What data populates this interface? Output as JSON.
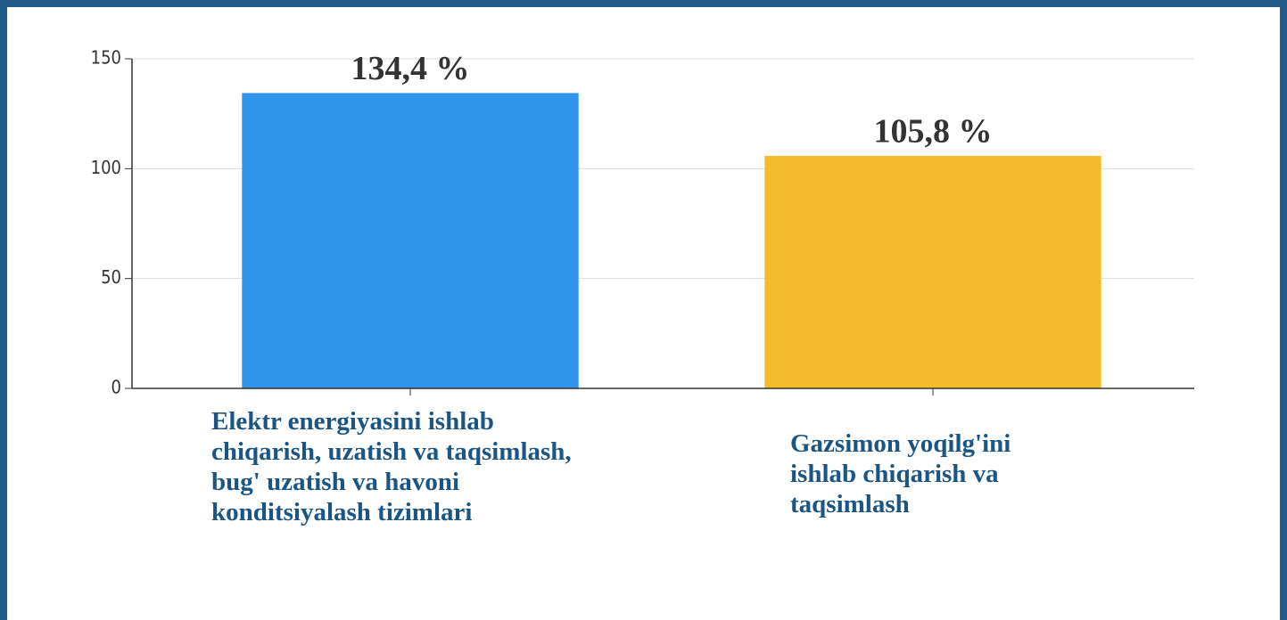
{
  "chart_data": {
    "type": "bar",
    "categories": [
      "Elektr energiyasini ishlab chiqarish, uzatish va taqsimlash, bug' uzatish va havoni konditsiyalash tizimlari",
      "Gazsimon yoqilg'ini ishlab chiqarish va taqsimlash"
    ],
    "values": [
      134.4,
      105.8
    ],
    "value_labels": [
      "134,4 %",
      "105,8 %"
    ],
    "colors": [
      "#3094ea",
      "#f5bb2b"
    ],
    "ylim": [
      0,
      150
    ],
    "yticks": [
      0,
      50,
      100,
      150
    ],
    "grid": true
  }
}
